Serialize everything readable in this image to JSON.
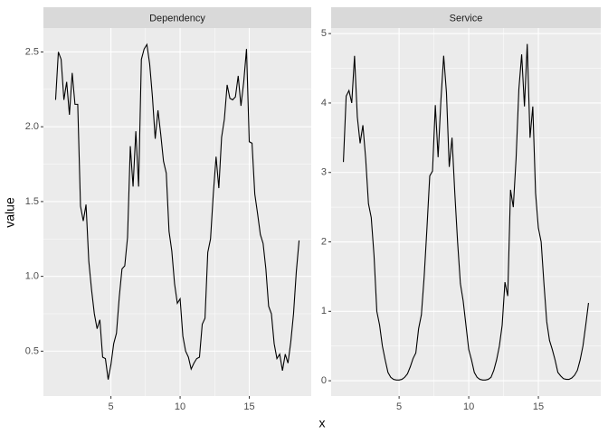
{
  "axis_labels": {
    "x": "x",
    "y": "value"
  },
  "chart_data": [
    {
      "type": "line",
      "title": "Dependency",
      "color": "#000000",
      "grid": true,
      "x": [
        1,
        1.2,
        1.4,
        1.6,
        1.8,
        2,
        2.2,
        2.4,
        2.6,
        2.8,
        3,
        3.2,
        3.4,
        3.6,
        3.8,
        4,
        4.2,
        4.4,
        4.6,
        4.8,
        5,
        5.2,
        5.4,
        5.6,
        5.8,
        6,
        6.2,
        6.4,
        6.6,
        6.8,
        7,
        7.2,
        7.4,
        7.6,
        7.8,
        8,
        8.2,
        8.4,
        8.6,
        8.8,
        9,
        9.2,
        9.4,
        9.6,
        9.8,
        10,
        10.2,
        10.4,
        10.6,
        10.8,
        11,
        11.2,
        11.4,
        11.6,
        11.8,
        12,
        12.2,
        12.4,
        12.6,
        12.8,
        13,
        13.2,
        13.4,
        13.6,
        13.8,
        14,
        14.2,
        14.4,
        14.6,
        14.8,
        15,
        15.2,
        15.4,
        15.6,
        15.8,
        16,
        16.2,
        16.4,
        16.6,
        16.8,
        17,
        17.2,
        17.4,
        17.6,
        17.8,
        18,
        18.2,
        18.4,
        18.6
      ],
      "values": [
        2.18,
        2.5,
        2.45,
        2.18,
        2.3,
        2.08,
        2.36,
        2.15,
        2.15,
        1.47,
        1.37,
        1.48,
        1.1,
        0.91,
        0.75,
        0.65,
        0.71,
        0.46,
        0.45,
        0.31,
        0.41,
        0.55,
        0.62,
        0.86,
        1.05,
        1.07,
        1.26,
        1.87,
        1.6,
        1.97,
        1.6,
        2.45,
        2.52,
        2.55,
        2.42,
        2.2,
        1.92,
        2.11,
        1.95,
        1.77,
        1.69,
        1.3,
        1.17,
        0.95,
        0.82,
        0.85,
        0.6,
        0.5,
        0.46,
        0.38,
        0.42,
        0.45,
        0.46,
        0.68,
        0.72,
        1.16,
        1.25,
        1.55,
        1.8,
        1.59,
        1.93,
        2.05,
        2.28,
        2.19,
        2.18,
        2.2,
        2.34,
        2.14,
        2.3,
        2.52,
        1.9,
        1.89,
        1.55,
        1.42,
        1.28,
        1.22,
        1.05,
        0.8,
        0.75,
        0.55,
        0.45,
        0.48,
        0.37,
        0.48,
        0.42,
        0.56,
        0.75,
        1.03,
        1.24
      ],
      "xlim": [
        0.12,
        19.48
      ],
      "xticks": [
        5,
        10,
        15
      ],
      "ylim": [
        0.2,
        2.66
      ],
      "yticks": [
        0.5,
        {
          "value": 1,
          "label": "1.0"
        },
        1.5,
        {
          "value": 2,
          "label": "2.0"
        },
        2.5
      ]
    },
    {
      "type": "line",
      "title": "Service",
      "color": "#000000",
      "grid": true,
      "x": [
        1,
        1.2,
        1.4,
        1.6,
        1.8,
        2,
        2.2,
        2.4,
        2.6,
        2.8,
        3,
        3.2,
        3.4,
        3.6,
        3.8,
        4,
        4.2,
        4.4,
        4.6,
        4.8,
        5,
        5.2,
        5.4,
        5.6,
        5.8,
        6,
        6.2,
        6.4,
        6.6,
        6.8,
        7,
        7.2,
        7.4,
        7.6,
        7.8,
        8,
        8.2,
        8.4,
        8.6,
        8.8,
        9,
        9.2,
        9.4,
        9.6,
        9.8,
        10,
        10.2,
        10.4,
        10.6,
        10.8,
        11,
        11.2,
        11.4,
        11.6,
        11.8,
        12,
        12.2,
        12.4,
        12.6,
        12.8,
        13,
        13.2,
        13.4,
        13.6,
        13.8,
        14,
        14.2,
        14.4,
        14.6,
        14.8,
        15,
        15.2,
        15.4,
        15.6,
        15.8,
        16,
        16.2,
        16.4,
        16.6,
        16.8,
        17,
        17.2,
        17.4,
        17.6,
        17.8,
        18,
        18.2,
        18.4,
        18.6
      ],
      "values": [
        3.15,
        4.1,
        4.18,
        4.0,
        4.68,
        3.8,
        3.42,
        3.68,
        3.2,
        2.55,
        2.35,
        1.8,
        1.0,
        0.8,
        0.5,
        0.3,
        0.12,
        0.05,
        0.02,
        0.01,
        0.01,
        0.02,
        0.05,
        0.1,
        0.2,
        0.32,
        0.4,
        0.75,
        0.95,
        1.5,
        2.2,
        2.95,
        3.02,
        3.97,
        3.22,
        4.03,
        4.68,
        4.15,
        3.08,
        3.5,
        2.7,
        2.0,
        1.4,
        1.15,
        0.8,
        0.45,
        0.3,
        0.12,
        0.05,
        0.02,
        0.01,
        0.01,
        0.02,
        0.05,
        0.15,
        0.3,
        0.5,
        0.8,
        1.42,
        1.22,
        2.75,
        2.5,
        3.2,
        4.2,
        4.7,
        3.95,
        4.85,
        3.5,
        3.95,
        2.7,
        2.2,
        2.0,
        1.4,
        0.85,
        0.58,
        0.45,
        0.3,
        0.12,
        0.07,
        0.03,
        0.02,
        0.02,
        0.04,
        0.08,
        0.15,
        0.3,
        0.5,
        0.8,
        1.12
      ],
      "xlim": [
        0.12,
        19.48
      ],
      "xticks": [
        5,
        10,
        15
      ],
      "ylim": [
        -0.22,
        5.08
      ],
      "yticks": [
        0,
        1,
        2,
        3,
        4,
        5
      ]
    }
  ]
}
